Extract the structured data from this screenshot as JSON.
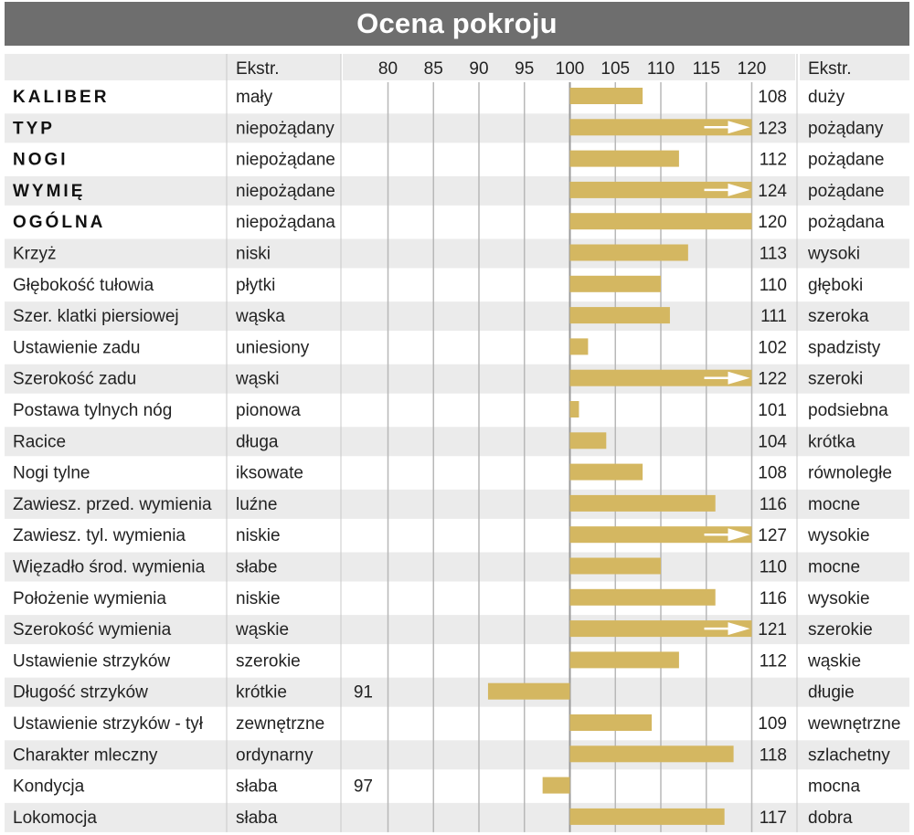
{
  "title": "Ocena pokroju",
  "header": {
    "left_extreme": "Ekstr.",
    "right_extreme": "Ekstr."
  },
  "colors": {
    "bar": "#d4b761",
    "title_background": "#6e6e6e",
    "row_shade": "#ebebeb",
    "grid": "#b8b8b8",
    "arrow": "#ffffff"
  },
  "chart_data": {
    "type": "bar",
    "orientation": "horizontal",
    "baseline": 100,
    "xlim": [
      75,
      120
    ],
    "xticks": [
      "80",
      "85",
      "90",
      "95",
      "100",
      "105",
      "110",
      "115",
      "120"
    ],
    "grid": true,
    "rows": [
      {
        "trait": "KALIBER",
        "bold": true,
        "low": "mały",
        "high": "duży",
        "value": 108
      },
      {
        "trait": "TYP",
        "bold": true,
        "low": "niepożądany",
        "high": "pożądany",
        "value": 123
      },
      {
        "trait": "NOGI",
        "bold": true,
        "low": "niepożądane",
        "high": "pożądane",
        "value": 112
      },
      {
        "trait": "WYMIĘ",
        "bold": true,
        "low": "niepożądane",
        "high": "pożądane",
        "value": 124
      },
      {
        "trait": "OGÓLNA",
        "bold": true,
        "low": "niepożądana",
        "high": "pożądana",
        "value": 120
      },
      {
        "trait": "Krzyż",
        "bold": false,
        "low": "niski",
        "high": "wysoki",
        "value": 113
      },
      {
        "trait": "Głębokość tułowia",
        "bold": false,
        "low": "płytki",
        "high": "głęboki",
        "value": 110
      },
      {
        "trait": "Szer. klatki piersiowej",
        "bold": false,
        "low": "wąska",
        "high": "szeroka",
        "value": 111
      },
      {
        "trait": "Ustawienie zadu",
        "bold": false,
        "low": "uniesiony",
        "high": "spadzisty",
        "value": 102
      },
      {
        "trait": "Szerokość zadu",
        "bold": false,
        "low": "wąski",
        "high": "szeroki",
        "value": 122
      },
      {
        "trait": "Postawa tylnych nóg",
        "bold": false,
        "low": "pionowa",
        "high": "podsiebna",
        "value": 101
      },
      {
        "trait": "Racice",
        "bold": false,
        "low": "długa",
        "high": "krótka",
        "value": 104
      },
      {
        "trait": "Nogi tylne",
        "bold": false,
        "low": "iksowate",
        "high": "równoległe",
        "value": 108
      },
      {
        "trait": "Zawiesz. przed. wymienia",
        "bold": false,
        "low": "luźne",
        "high": "mocne",
        "value": 116
      },
      {
        "trait": "Zawiesz. tyl. wymienia",
        "bold": false,
        "low": "niskie",
        "high": "wysokie",
        "value": 127
      },
      {
        "trait": "Więzadło środ. wymienia",
        "bold": false,
        "low": "słabe",
        "high": "mocne",
        "value": 110
      },
      {
        "trait": "Położenie wymienia",
        "bold": false,
        "low": "niskie",
        "high": "wysokie",
        "value": 116
      },
      {
        "trait": "Szerokość wymienia",
        "bold": false,
        "low": "wąskie",
        "high": "szerokie",
        "value": 121
      },
      {
        "trait": "Ustawienie strzyków",
        "bold": false,
        "low": "szerokie",
        "high": "wąskie",
        "value": 112
      },
      {
        "trait": "Długość strzyków",
        "bold": false,
        "low": "krótkie",
        "high": "długie",
        "value": 91
      },
      {
        "trait": "Ustawienie strzyków - tył",
        "bold": false,
        "low": "zewnętrzne",
        "high": "wewnętrzne",
        "value": 109
      },
      {
        "trait": "Charakter mleczny",
        "bold": false,
        "low": "ordynarny",
        "high": "szlachetny",
        "value": 118
      },
      {
        "trait": "Kondycja",
        "bold": false,
        "low": "słaba",
        "high": "mocna",
        "value": 97
      },
      {
        "trait": "Lokomocja",
        "bold": false,
        "low": "słaba",
        "high": "dobra",
        "value": 117
      }
    ]
  }
}
